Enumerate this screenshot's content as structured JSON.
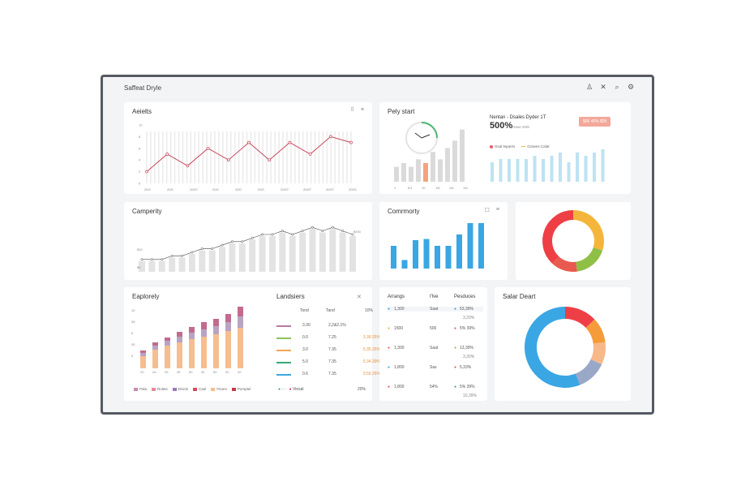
{
  "window": {
    "title": "Saffeat Dryle",
    "icons": [
      "person-icon",
      "close-icon",
      "search-icon",
      "gear-icon"
    ]
  },
  "cards": {
    "alerts": {
      "title": "Aeielts",
      "tools": [
        "⌷",
        "≡"
      ],
      "yticks": [
        "10",
        "8",
        "6",
        "4",
        "2",
        "0"
      ],
      "xticks": [
        "20/0",
        "20/0",
        "20/07",
        "20/0",
        "20/0",
        "20/0",
        "20/07",
        "20/07",
        "20/07",
        "20/01"
      ],
      "values": [
        2,
        5,
        3,
        6,
        4,
        7,
        4,
        7,
        5,
        8,
        7
      ]
    },
    "poly": {
      "title": "Pely start",
      "xticks": [
        "1",
        "6/1",
        "10",
        "1/6",
        "1/6",
        "1/6"
      ],
      "bars": [
        4,
        5,
        4,
        6,
        5,
        8,
        6,
        9,
        11,
        14
      ],
      "highlight": 4
    },
    "sales": {
      "title": "Nentan - Dsales Dyder 1T",
      "value": "500%",
      "sub": "Oove 2n/6",
      "badge": "$95 40% $95",
      "legend": [
        "Gsal lepares",
        "Gzaees Calat"
      ],
      "bars": [
        6,
        7,
        7,
        7,
        7,
        8,
        7,
        8,
        9,
        6,
        9,
        8,
        9,
        10
      ]
    },
    "capacity": {
      "title": "Camperity",
      "yticks": [
        "$10",
        "$0"
      ],
      "end_label": "$200",
      "values": [
        3,
        3,
        3,
        4,
        4,
        5,
        6,
        6,
        7,
        8,
        8,
        9,
        10,
        10,
        11,
        10,
        11,
        12,
        11,
        12,
        11,
        10
      ]
    },
    "community": {
      "title": "Comrmorty",
      "tools": [
        "☐",
        "≡"
      ],
      "bars": [
        4,
        1.5,
        5,
        5.2,
        4,
        4,
        6,
        8,
        8
      ]
    },
    "ring_top": {
      "slices": [
        {
          "value": 30,
          "color": "#f4b63a"
        },
        {
          "value": 18,
          "color": "#8fbf45"
        },
        {
          "value": 14,
          "color": "#e85a4f"
        },
        {
          "value": 38,
          "color": "#ee3f46"
        }
      ]
    },
    "explorely": {
      "title": "Eaplorely",
      "yticks": [
        "10",
        "08",
        "6",
        "05",
        "0"
      ],
      "xticks": [
        "20",
        "2a",
        "25",
        "2E",
        "50",
        "40",
        "50",
        "20",
        "20"
      ],
      "stacks": [
        [
          1.5,
          0.4,
          0.3
        ],
        [
          2.3,
          0.5,
          0.4
        ],
        [
          2.8,
          0.6,
          0.4
        ],
        [
          3.2,
          0.7,
          0.6
        ],
        [
          3.6,
          0.8,
          0.7
        ],
        [
          3.9,
          0.9,
          0.9
        ],
        [
          4.2,
          1.0,
          0.9
        ],
        [
          4.6,
          1.1,
          1.0
        ],
        [
          5.0,
          1.4,
          1.2
        ]
      ],
      "colors": [
        "#f6bd8f",
        "#b8a4c2",
        "#c26b8e"
      ],
      "legend": [
        "Pala",
        "Rolets",
        "Dnicls",
        "Cael",
        "Frioes",
        "Pomptel"
      ],
      "legend_colors": [
        "#c98ab2",
        "#e58a9b",
        "#9c7ab3",
        "#d9495c",
        "#f6bd8f",
        "#c43a4a"
      ]
    },
    "landers": {
      "title": "Landsiers",
      "close": "✕",
      "headers": [
        "Tond",
        "Tand",
        "10%"
      ],
      "rows": [
        {
          "color": "#b87aa2",
          "a": "3.30",
          "b": "2,2&2.1%",
          "c": ""
        },
        {
          "color": "#8cc45a",
          "a": "0.0",
          "b": "7.25",
          "c": "3.39.25%"
        },
        {
          "color": "#f3a45a",
          "a": "3.0",
          "b": "7.35",
          "c": "5.35.25%"
        },
        {
          "color": "#3aa873",
          "a": "5.0",
          "b": "7.35",
          "c": "5.34.39%"
        },
        {
          "color": "#3ea6e0",
          "a": "0.6",
          "b": "7.35",
          "c": "3.59.25%"
        }
      ],
      "footer_left": "Viesal",
      "footer_right": "20%"
    },
    "arrangs": {
      "headers": [
        "Arrangs",
        "I'lve",
        "Pesduces"
      ],
      "rows": [
        {
          "dot": "#3ea6e0",
          "num": "1,300",
          "s": "Saat",
          "p": "53,39%",
          "pc": "#3ea6e0"
        },
        {
          "dot": "#f4b63a",
          "num": "1500",
          "s": "500",
          "p": "5% 39%",
          "pc": "#e85a4f"
        },
        {
          "dot": "#e85a4f",
          "num": "1,300",
          "s": "Saat",
          "p": "13,39%",
          "pc": "#8fbf45"
        },
        {
          "dot": "#3ea6e0",
          "num": "1,800",
          "s": "Sas",
          "p": "5,33%",
          "pc": "#e85a4f"
        },
        {
          "dot": "#e85a4f",
          "num": "1,800",
          "s": "54%",
          "p": "5% 39%",
          "pc": "#3aa873"
        }
      ],
      "extra": [
        "3,20%",
        "3,30%",
        "10,39%"
      ]
    },
    "salar": {
      "title": "Salar Deart",
      "slices": [
        {
          "value": 13,
          "color": "#ee3f46"
        },
        {
          "value": 10,
          "color": "#f69b3a"
        },
        {
          "value": 9,
          "color": "#f7b88a"
        },
        {
          "value": 12,
          "color": "#9aa8c8"
        },
        {
          "value": 56,
          "color": "#3aa6e4"
        }
      ]
    }
  }
}
